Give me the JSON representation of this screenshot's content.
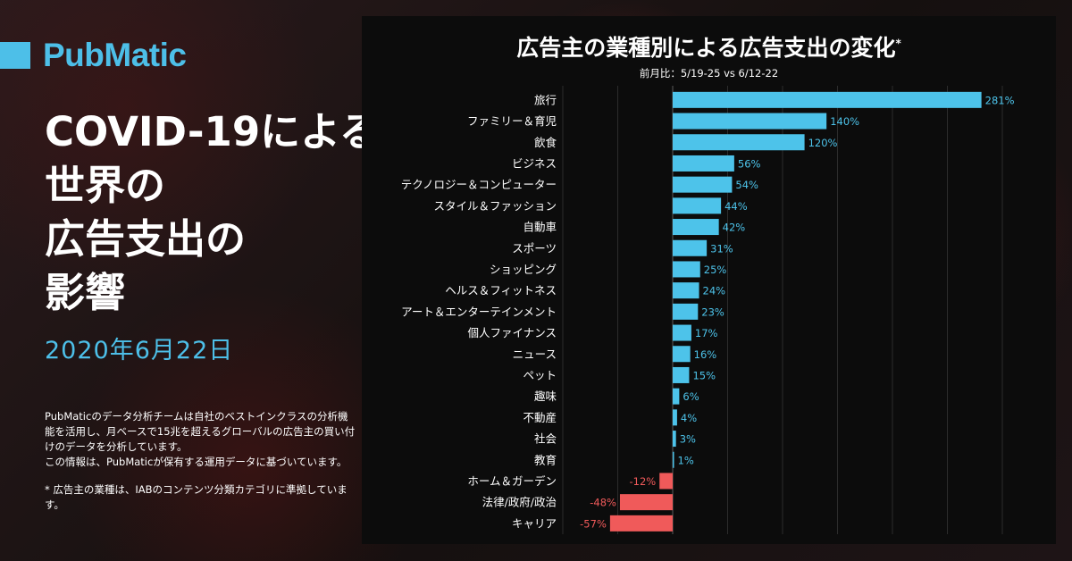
{
  "brand": {
    "name": "PubMatic",
    "color": "#4dbfe8"
  },
  "headline": {
    "lines": [
      "COVID-19による",
      "世界の",
      "広告支出の",
      "影響"
    ]
  },
  "date": "2020年6月22日",
  "description": {
    "paragraph1": "PubMaticのデータ分析チームは自社のベストインクラスの分析機能を活用し、月ベースで15兆を超えるグローバルの広告主の買い付けのデータを分析しています。",
    "paragraph2": "この情報は、PubMaticが保有する運用データに基づいています。",
    "note": "* 広告主の業種は、IABのコンテンツ分類カテゴリに準拠しています。"
  },
  "chart_data": {
    "type": "bar",
    "orientation": "horizontal",
    "title": "広告主の業種別による広告支出の変化",
    "title_marker": "*",
    "subtitle": "前月比：5/19-25 vs 6/12-22",
    "categories": [
      "旅行",
      "ファミリー＆育児",
      "飲食",
      "ビジネス",
      "テクノロジー＆コンピューター",
      "スタイル＆ファッション",
      "自動車",
      "スポーツ",
      "ショッピング",
      "ヘルス＆フィットネス",
      "アート＆エンターテインメント",
      "個人ファイナンス",
      "ニュース",
      "ペット",
      "趣味",
      "不動産",
      "社会",
      "教育",
      "ホーム＆ガーデン",
      "法律/政府/政治",
      "キャリア"
    ],
    "values": [
      281,
      140,
      120,
      56,
      54,
      44,
      42,
      31,
      25,
      24,
      23,
      17,
      16,
      15,
      6,
      4,
      3,
      1,
      -12,
      -48,
      -57
    ],
    "value_suffix": "%",
    "xlim": [
      -100,
      300
    ],
    "grid": true,
    "colors": {
      "positive": "#4dc3ea",
      "negative": "#f05a5a",
      "positive_label": "#4dc3ea",
      "negative_label": "#f05a5a"
    }
  }
}
